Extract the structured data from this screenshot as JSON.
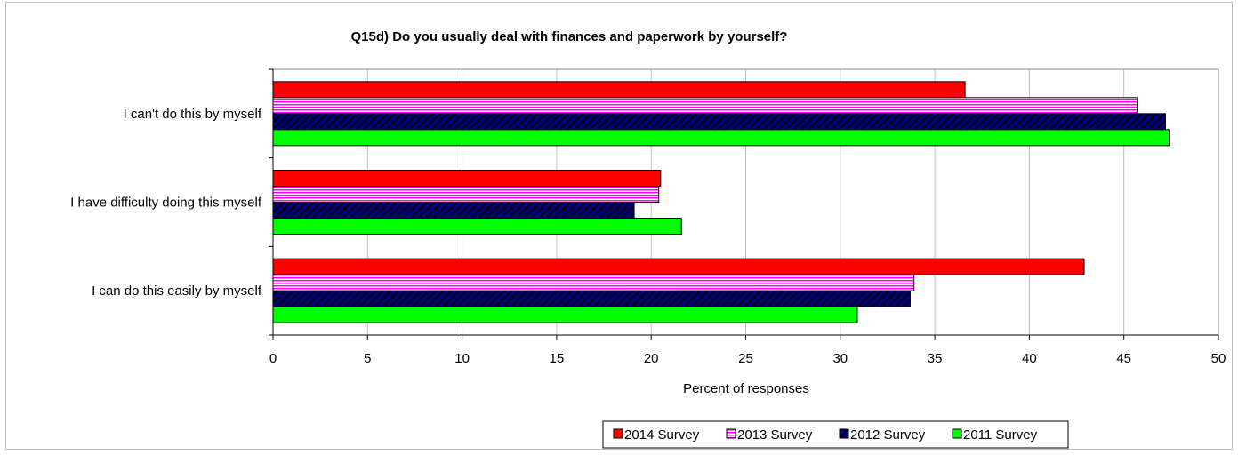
{
  "chart_data": {
    "type": "bar",
    "orientation": "horizontal",
    "title": "Q15d)  Do you usually deal with finances and paperwork by yourself?",
    "xlabel": "Percent of responses",
    "ylabel": "",
    "xlim": [
      0,
      50
    ],
    "xticks": [
      "0",
      "5",
      "10",
      "15",
      "20",
      "25",
      "30",
      "35",
      "40",
      "45",
      "50"
    ],
    "grid": "vertical",
    "legend_position": "bottom",
    "categories": [
      "I can't do this by myself",
      "I have difficulty doing this myself",
      "I can do this easily by myself"
    ],
    "series": [
      {
        "name": "2014 Survey",
        "values": [
          36.6,
          20.5,
          42.9
        ],
        "color": "#ff0000",
        "pattern": "solid"
      },
      {
        "name": "2013 Survey",
        "values": [
          45.7,
          20.4,
          33.9
        ],
        "color": "#ff00ff",
        "pattern": "horizontal-stripes"
      },
      {
        "name": "2012 Survey",
        "values": [
          47.2,
          19.1,
          33.7
        ],
        "color": "#000080",
        "pattern": "diagonal-stripes"
      },
      {
        "name": "2011 Survey",
        "values": [
          47.4,
          21.6,
          30.9
        ],
        "color": "#00ff00",
        "pattern": "solid"
      }
    ]
  }
}
